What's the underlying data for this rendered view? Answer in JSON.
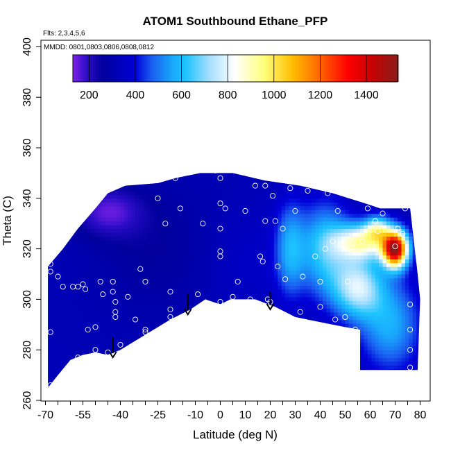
{
  "chart_data": {
    "type": "heatmap",
    "title": "ATOM1 Southbound Ethane_PFP",
    "annotations": {
      "flights": "Flts: 2,3,4,5,6",
      "dates": "MMDD: 0801,0803,0806,0808,0812"
    },
    "xlabel": "Latitude (deg N)",
    "ylabel": "Theta (C)",
    "xlim": [
      -70,
      80
    ],
    "ylim": [
      260,
      400
    ],
    "x_ticks": [
      -70,
      -55,
      -40,
      -25,
      -10,
      0,
      10,
      20,
      30,
      40,
      50,
      60,
      70,
      80
    ],
    "x_tick_labels": [
      "-70",
      "-55",
      "-40",
      "-25",
      "-10",
      "0",
      "10",
      "20",
      "30",
      "40",
      "50",
      "60",
      "70",
      "80"
    ],
    "x_minor_ticks": [
      -65,
      -60,
      -50,
      -45,
      -35,
      -30,
      -20,
      -15,
      -5,
      5,
      15,
      25,
      35,
      45,
      55,
      65,
      75
    ],
    "y_ticks": [
      260,
      280,
      300,
      320,
      340,
      360,
      380,
      400
    ],
    "y_tick_labels": [
      "260",
      "280",
      "300",
      "320",
      "340",
      "360",
      "380",
      "400"
    ],
    "colorbar": {
      "range": [
        130,
        1535
      ],
      "ticks": [
        200,
        400,
        600,
        800,
        1000,
        1200,
        1400
      ],
      "tick_labels": [
        "200",
        "400",
        "600",
        "800",
        "1000",
        "1200",
        "1400"
      ],
      "colors": [
        {
          "v": 130,
          "c": "#7f22e6"
        },
        {
          "v": 190,
          "c": "#2c0cc8"
        },
        {
          "v": 260,
          "c": "#00009c"
        },
        {
          "v": 400,
          "c": "#0000d8"
        },
        {
          "v": 470,
          "c": "#1a5cf0"
        },
        {
          "v": 560,
          "c": "#18a8fc"
        },
        {
          "v": 620,
          "c": "#1ec4ff"
        },
        {
          "v": 720,
          "c": "#a4deff"
        },
        {
          "v": 830,
          "c": "#ffffff"
        },
        {
          "v": 960,
          "c": "#ffff7a"
        },
        {
          "v": 1080,
          "c": "#ffbe00"
        },
        {
          "v": 1200,
          "c": "#ff6400"
        },
        {
          "v": 1320,
          "c": "#ff0000"
        },
        {
          "v": 1420,
          "c": "#c80000"
        },
        {
          "v": 1535,
          "c": "#8c1c1c"
        }
      ]
    },
    "coverage": {
      "top": [
        [
          -69,
          313
        ],
        [
          -63,
          320
        ],
        [
          -57,
          328
        ],
        [
          -50,
          336
        ],
        [
          -45,
          342
        ],
        [
          -38,
          345
        ],
        [
          -25,
          346
        ],
        [
          -18,
          348
        ],
        [
          -8,
          350
        ],
        [
          5,
          350
        ],
        [
          18,
          347
        ],
        [
          32,
          345
        ],
        [
          45,
          342
        ],
        [
          58,
          338
        ],
        [
          64,
          336
        ],
        [
          76,
          336
        ]
      ],
      "bottom": [
        [
          -69,
          265
        ],
        [
          -65,
          270
        ],
        [
          -60,
          276
        ],
        [
          -55,
          278
        ],
        [
          -50,
          279
        ],
        [
          -45,
          278
        ],
        [
          -40,
          280
        ],
        [
          -30,
          286
        ],
        [
          -20,
          292
        ],
        [
          -12,
          296
        ],
        [
          -6,
          300
        ],
        [
          0,
          298
        ],
        [
          4,
          300
        ],
        [
          14,
          300
        ],
        [
          22,
          297
        ],
        [
          30,
          293
        ],
        [
          40,
          291
        ],
        [
          50,
          289
        ],
        [
          56,
          288
        ],
        [
          56,
          272
        ],
        [
          79,
          272
        ]
      ],
      "right": [
        [
          76,
          336
        ],
        [
          79,
          310
        ],
        [
          80,
          300
        ],
        [
          79,
          272
        ]
      ]
    },
    "field": {
      "background": 320,
      "features": [
        {
          "x": -45,
          "y": 335,
          "sx": 14,
          "sy": 10,
          "v": -150
        },
        {
          "x": -25,
          "y": 320,
          "sx": 25,
          "sy": 25,
          "v": -60
        },
        {
          "x": 10,
          "y": 315,
          "sx": 20,
          "sy": 20,
          "v": 40
        },
        {
          "x": 28,
          "y": 320,
          "sx": 6,
          "sy": 18,
          "v": 230
        },
        {
          "x": 42,
          "y": 320,
          "sx": 10,
          "sy": 18,
          "v": 300
        },
        {
          "x": 55,
          "y": 305,
          "sx": 10,
          "sy": 12,
          "v": 420
        },
        {
          "x": 57,
          "y": 323,
          "sx": 11,
          "sy": 7,
          "v": 520
        },
        {
          "x": 68,
          "y": 290,
          "sx": 12,
          "sy": 18,
          "v": 250
        },
        {
          "x": 70,
          "y": 320,
          "sx": 5,
          "sy": 7,
          "v": 1120
        },
        {
          "x": 63,
          "y": 328,
          "sx": 5,
          "sy": 5,
          "v": 350
        }
      ]
    },
    "samples": [
      [
        -68,
        314
      ],
      [
        -68,
        311
      ],
      [
        -68,
        287
      ],
      [
        -68,
        266
      ],
      [
        -65,
        309
      ],
      [
        -63,
        305
      ],
      [
        -59,
        305
      ],
      [
        -57,
        305
      ],
      [
        -57,
        277
      ],
      [
        -55,
        306
      ],
      [
        -54,
        304
      ],
      [
        -53,
        288
      ],
      [
        -50,
        289
      ],
      [
        -50,
        280
      ],
      [
        -48,
        307
      ],
      [
        -47,
        302
      ],
      [
        -45,
        279
      ],
      [
        -43,
        307
      ],
      [
        -43,
        303
      ],
      [
        -42,
        299
      ],
      [
        -42,
        295
      ],
      [
        -42,
        293
      ],
      [
        -40,
        282
      ],
      [
        -37,
        301
      ],
      [
        -34,
        292
      ],
      [
        -32,
        312
      ],
      [
        -30,
        307
      ],
      [
        -30,
        288
      ],
      [
        -30,
        287
      ],
      [
        -25,
        340
      ],
      [
        -22,
        330
      ],
      [
        -20,
        303
      ],
      [
        -20,
        296
      ],
      [
        -20,
        293
      ],
      [
        -18,
        348
      ],
      [
        -16,
        336
      ],
      [
        -9,
        302
      ],
      [
        -7,
        330
      ],
      [
        -2,
        351
      ],
      [
        0,
        348
      ],
      [
        0,
        338
      ],
      [
        0,
        328
      ],
      [
        0,
        319
      ],
      [
        0,
        317
      ],
      [
        0,
        299
      ],
      [
        2,
        336
      ],
      [
        5,
        301
      ],
      [
        7,
        307
      ],
      [
        10,
        335
      ],
      [
        12,
        300
      ],
      [
        14,
        345
      ],
      [
        16,
        317
      ],
      [
        17,
        315
      ],
      [
        18,
        331
      ],
      [
        18,
        345
      ],
      [
        19,
        300
      ],
      [
        20,
        299
      ],
      [
        21,
        341
      ],
      [
        22,
        331
      ],
      [
        23,
        313
      ],
      [
        25,
        328
      ],
      [
        26,
        308
      ],
      [
        28,
        344
      ],
      [
        30,
        335
      ],
      [
        32,
        295
      ],
      [
        33,
        309
      ],
      [
        35,
        343
      ],
      [
        38,
        317
      ],
      [
        40,
        297
      ],
      [
        40,
        307
      ],
      [
        42,
        320
      ],
      [
        43,
        342
      ],
      [
        45,
        323
      ],
      [
        46,
        292
      ],
      [
        47,
        335
      ],
      [
        50,
        293
      ],
      [
        51,
        307
      ],
      [
        53,
        322
      ],
      [
        54,
        288
      ],
      [
        57,
        323
      ],
      [
        59,
        336
      ],
      [
        62,
        331
      ],
      [
        63,
        327
      ],
      [
        65,
        334
      ],
      [
        70,
        321
      ],
      [
        71,
        328
      ],
      [
        73,
        326
      ],
      [
        74,
        336
      ],
      [
        76,
        298
      ],
      [
        76,
        288
      ],
      [
        76,
        280
      ],
      [
        76,
        273
      ]
    ],
    "arrows": [
      {
        "x": -43,
        "y_top": 285,
        "y_tip": 277
      },
      {
        "x": -13,
        "y_top": 302,
        "y_tip": 294
      },
      {
        "x": 20,
        "y_top": 303,
        "y_tip": 296
      }
    ]
  }
}
